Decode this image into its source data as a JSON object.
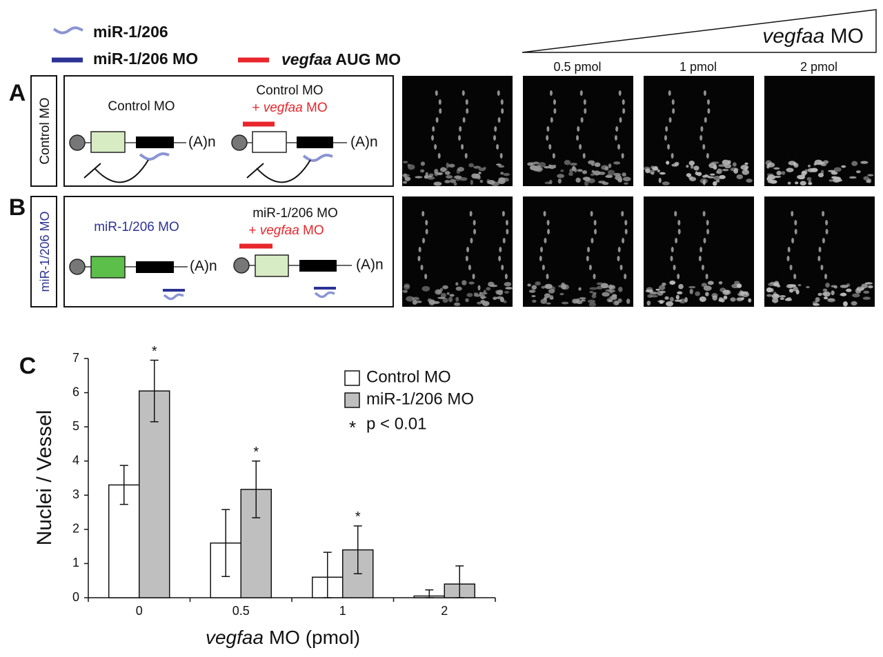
{
  "legend": {
    "items": [
      {
        "label": "miR-1/206"
      },
      {
        "label": "miR-1/206 MO"
      },
      {
        "label_italic": "vegfaa",
        "label": "AUG MO"
      }
    ]
  },
  "dose_header": {
    "label_italic": "vegfaa",
    "label": "MO",
    "doses": [
      "0.5 pmol",
      "1 pmol",
      "2 pmol"
    ]
  },
  "panels": [
    {
      "letter": "A",
      "row_label": "Control MO",
      "left_text": "Control MO",
      "right_line1": "Control MO",
      "right_prefix": "+",
      "right_italic": "vegfaa",
      "right_suffix": "MO",
      "polyA": [
        "(A)n",
        "(A)n"
      ]
    },
    {
      "letter": "B",
      "row_label": "miR-1/206 MO",
      "left_text": "miR-1/206 MO",
      "right_line1": "miR-1/206 MO",
      "right_prefix": "+",
      "right_italic": "vegfaa",
      "right_suffix": "MO",
      "polyA": [
        "(A)n",
        "(A)n"
      ]
    }
  ],
  "chart_data": {
    "type": "bar",
    "panel_letter": "C",
    "y_label": "Nuclei / Vessel",
    "x_label_italic": "vegfaa",
    "x_label": "MO (pmol)",
    "categories": [
      "0",
      "0.5",
      "1",
      "2"
    ],
    "series": [
      {
        "name": "Control MO",
        "color": "#ffffff",
        "values": [
          3.3,
          1.6,
          0.6,
          0.05
        ],
        "errors": [
          0.57,
          0.98,
          0.73,
          0.18
        ]
      },
      {
        "name": "miR-1/206 MO",
        "color": "#bfbfbf",
        "values": [
          6.05,
          3.17,
          1.4,
          0.4
        ],
        "errors": [
          0.9,
          0.83,
          0.7,
          0.53
        ],
        "markers": [
          "*",
          "*",
          "*",
          null
        ]
      }
    ],
    "annotation": {
      "symbol": "*",
      "label": "p < 0.01"
    },
    "ylim": [
      0,
      7
    ],
    "yticks": [
      0,
      1,
      2,
      3,
      4,
      5,
      6,
      7
    ]
  }
}
